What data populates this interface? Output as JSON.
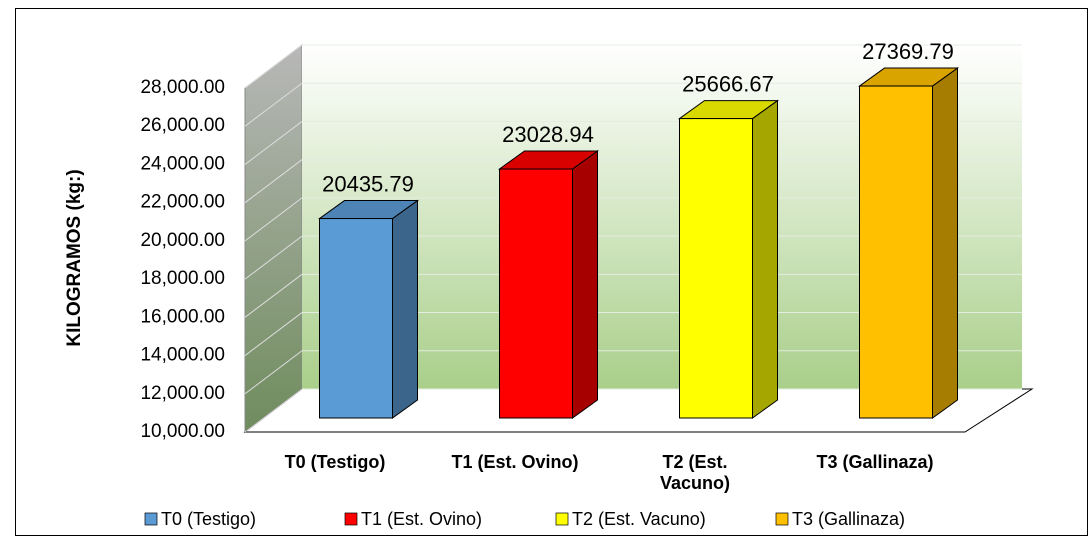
{
  "chart_data": {
    "type": "bar3d",
    "y_label": "KILOGRAMOS (kg:)",
    "categories": [
      "T0 (Testigo)",
      "T1 (Est. Ovino)",
      "T2 (Est. Vacuno)",
      "T3 (Gallinaza)"
    ],
    "values": [
      20435.79,
      23028.94,
      25666.67,
      27369.79
    ],
    "colors": [
      "#5b9bd5",
      "#ff0000",
      "#ffff00",
      "#ffc000"
    ],
    "ylim": [
      10000,
      28000
    ],
    "yticks": [
      {
        "value": 10000,
        "label": "10,000.00"
      },
      {
        "value": 12000,
        "label": "12,000.00"
      },
      {
        "value": 14000,
        "label": "14,000.00"
      },
      {
        "value": 16000,
        "label": "16,000.00"
      },
      {
        "value": 18000,
        "label": "18,000.00"
      },
      {
        "value": 20000,
        "label": "20,000.00"
      },
      {
        "value": 22000,
        "label": "22,000.00"
      },
      {
        "value": 24000,
        "label": "24,000.00"
      },
      {
        "value": 26000,
        "label": "26,000.00"
      },
      {
        "value": 28000,
        "label": "28,000.00"
      }
    ],
    "grid": true,
    "legend": "bottom"
  }
}
